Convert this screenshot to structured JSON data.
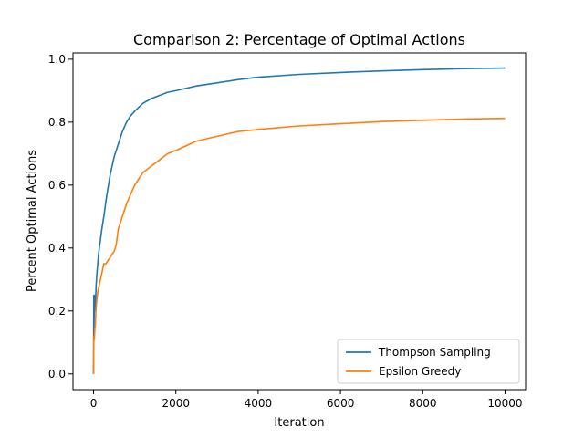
{
  "chart_data": {
    "type": "line",
    "title": "Comparison 2: Percentage of Optimal Actions",
    "xlabel": "Iteration",
    "ylabel": "Percent Optimal Actions",
    "xlim": [
      -500,
      10500
    ],
    "ylim": [
      -0.05,
      1.02
    ],
    "xticks": [
      0,
      2000,
      4000,
      6000,
      8000,
      10000
    ],
    "xtick_labels": [
      "0",
      "2000",
      "4000",
      "6000",
      "8000",
      "10000"
    ],
    "yticks": [
      0.0,
      0.2,
      0.4,
      0.6,
      0.8,
      1.0
    ],
    "ytick_labels": [
      "0.0",
      "0.2",
      "0.4",
      "0.6",
      "0.8",
      "1.0"
    ],
    "grid": false,
    "legend_position": "lower-right",
    "series": [
      {
        "name": "Thompson Sampling",
        "color": "#1f77b4",
        "x": [
          0,
          5,
          10,
          20,
          30,
          40,
          50,
          60,
          80,
          100,
          120,
          150,
          180,
          200,
          250,
          300,
          350,
          400,
          450,
          500,
          600,
          700,
          800,
          900,
          1000,
          1200,
          1400,
          1600,
          1800,
          2000,
          2500,
          3000,
          3500,
          4000,
          5000,
          6000,
          7000,
          8000,
          9000,
          10000
        ],
        "y": [
          0.0,
          0.25,
          0.15,
          0.22,
          0.25,
          0.2,
          0.24,
          0.28,
          0.32,
          0.35,
          0.38,
          0.41,
          0.44,
          0.46,
          0.5,
          0.55,
          0.59,
          0.63,
          0.66,
          0.69,
          0.73,
          0.77,
          0.8,
          0.82,
          0.835,
          0.86,
          0.875,
          0.885,
          0.895,
          0.9,
          0.915,
          0.925,
          0.935,
          0.943,
          0.952,
          0.958,
          0.963,
          0.967,
          0.97,
          0.972
        ]
      },
      {
        "name": "Epsilon Greedy",
        "color": "#ff7f0e",
        "x": [
          0,
          5,
          10,
          20,
          30,
          40,
          50,
          60,
          80,
          100,
          150,
          200,
          250,
          300,
          350,
          400,
          450,
          500,
          550,
          600,
          700,
          800,
          900,
          1000,
          1200,
          1400,
          1600,
          1800,
          2000,
          2500,
          3000,
          3500,
          4000,
          5000,
          6000,
          7000,
          8000,
          9000,
          10000
        ],
        "y": [
          0.0,
          0.1,
          0.12,
          0.11,
          0.14,
          0.15,
          0.18,
          0.21,
          0.24,
          0.26,
          0.29,
          0.32,
          0.35,
          0.35,
          0.36,
          0.37,
          0.38,
          0.39,
          0.41,
          0.46,
          0.5,
          0.54,
          0.57,
          0.6,
          0.64,
          0.66,
          0.68,
          0.7,
          0.71,
          0.74,
          0.755,
          0.77,
          0.777,
          0.788,
          0.795,
          0.802,
          0.806,
          0.81,
          0.812
        ]
      }
    ]
  }
}
